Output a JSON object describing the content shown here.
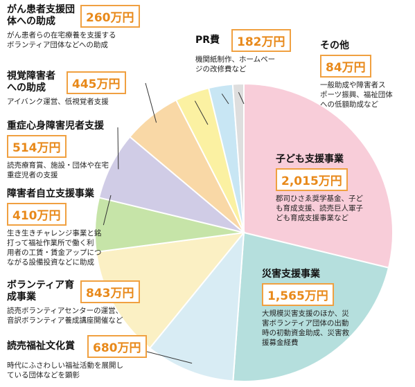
{
  "chart_data": {
    "type": "pie",
    "categories": [
      "子ども支援事業",
      "災害支援事業",
      "読売福祉文化賞",
      "ボランティア育成事業",
      "障害者自立支援事業",
      "重症心身障害児者支援",
      "視覚障害者への助成",
      "がん患者支援団体への助成",
      "PR費",
      "その他"
    ],
    "values": [
      2015,
      1565,
      680,
      843,
      410,
      514,
      445,
      260,
      182,
      84
    ],
    "value_labels": [
      "2,015万円",
      "1,565万円",
      "680万円",
      "843万円",
      "410万円",
      "514万円",
      "445万円",
      "260万円",
      "182万円",
      "84万円"
    ],
    "colors": [
      "#f8cdd9",
      "#b5dfdd",
      "#d8ecf4",
      "#fbf0c4",
      "#c6e4a8",
      "#d0cce6",
      "#f9d8a6",
      "#fbf1a2",
      "#c8e6f4",
      "#dedede"
    ],
    "descriptions": [
      [
        "郡司ひさゑ奨学基金、子ど",
        "も育成支援、読売巨人軍子",
        "ども育成支援事業など"
      ],
      [
        "大規模災害支援のほか、災",
        "害ボランティア団体の出動",
        "時の初動資金助成、災害救",
        "援募金経費"
      ],
      [
        "時代にふさわしい福祉活動を展開し",
        "ている団体などを顕彰"
      ],
      [
        "読売ボランティアセンターの運営、",
        "音訳ボランティア養成講座開催など"
      ],
      [
        "生き生きチャレンジ事業と銘",
        "打って福祉作業所で働く利",
        "用者の工賃・賃金アップにつ",
        "ながる設備投資などに助成"
      ],
      [
        "読売療育賞、施設・団体や在宅",
        "重症児者の支援"
      ],
      [
        "アイバンク運営、低視覚者支援"
      ],
      [
        "がん患者らの在宅療養を支援する",
        "ボランティア団体などへの助成"
      ],
      [
        "機関紙制作、ホームペー",
        "ジの改修費など"
      ],
      [
        "一般助成や障害者ス",
        "ポーツ振興、福祉団体",
        "への低額助成など"
      ]
    ]
  }
}
